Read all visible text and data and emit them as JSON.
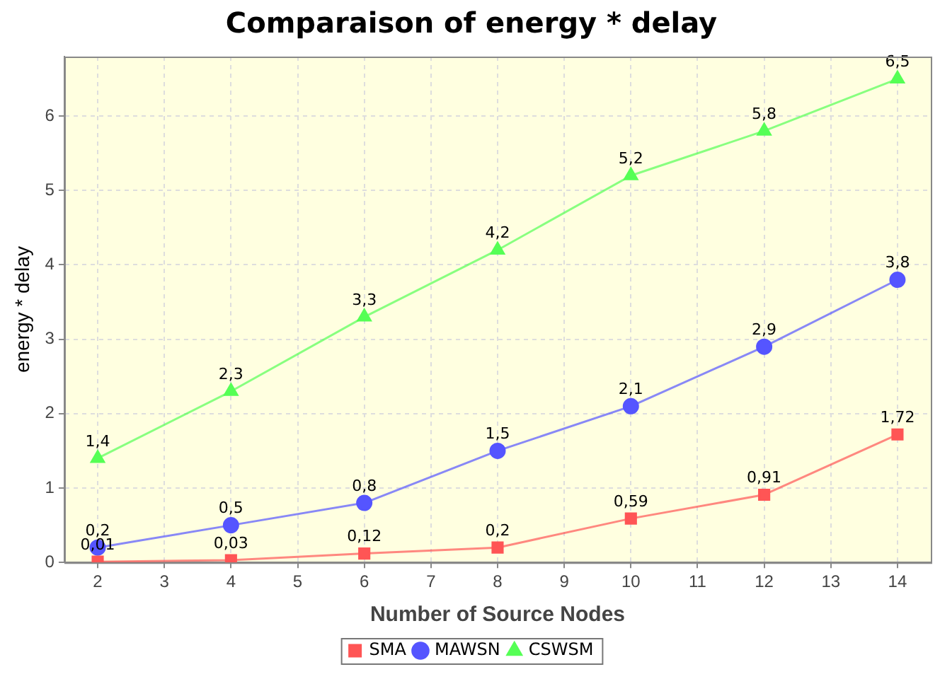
{
  "chart_data": {
    "type": "line",
    "title": "Comparaison of energy * delay",
    "xlabel": "Number of Source Nodes",
    "ylabel": "energy * delay",
    "x": [
      2,
      4,
      6,
      8,
      10,
      12,
      14
    ],
    "xlim": [
      1.5,
      14.5
    ],
    "xticks": [
      2,
      3,
      4,
      5,
      6,
      7,
      8,
      9,
      10,
      11,
      12,
      13,
      14
    ],
    "ylim": [
      0,
      6.8
    ],
    "yticks": [
      0,
      1,
      2,
      3,
      4,
      5,
      6
    ],
    "grid": true,
    "legend": "bottom",
    "line_style": "solid",
    "series": [
      {
        "name": "SMA",
        "color": "#ff5555",
        "marker": "square",
        "values": [
          0.01,
          0.03,
          0.12,
          0.2,
          0.59,
          0.91,
          1.72
        ],
        "value_labels": [
          "0,01",
          "0,03",
          "0,12",
          "0,2",
          "0,59",
          "0,91",
          "1,72"
        ]
      },
      {
        "name": "MAWSN",
        "color": "#5555ff",
        "marker": "circle",
        "values": [
          0.2,
          0.5,
          0.8,
          1.5,
          2.1,
          2.9,
          3.8
        ],
        "value_labels": [
          "0,2",
          "0,5",
          "0,8",
          "1,5",
          "2,1",
          "2,9",
          "3,8"
        ]
      },
      {
        "name": "CSWSM",
        "color": "#55ff55",
        "marker": "triangle",
        "values": [
          1.4,
          2.3,
          3.3,
          4.2,
          5.2,
          5.8,
          6.5
        ],
        "value_labels": [
          "1,4",
          "2,3",
          "3,3",
          "4,2",
          "5,2",
          "5,8",
          "6,5"
        ]
      }
    ]
  }
}
